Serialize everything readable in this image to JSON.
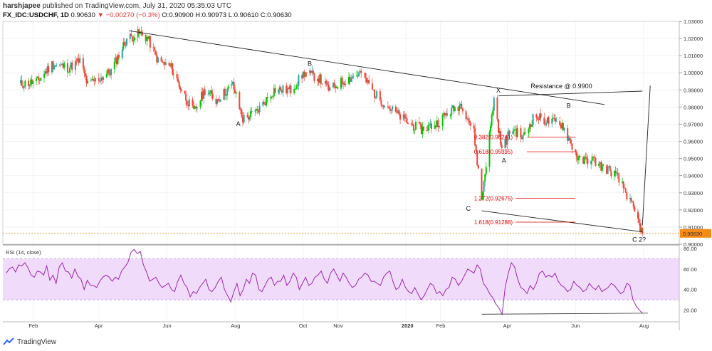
{
  "header": {
    "user": "harshjapee",
    "published": "published on TradingView.com, July 31, 2020 05:35:03 UTC"
  },
  "symbol": {
    "name": "FX_IDC:USDCHF, 1D",
    "last": "0.90630",
    "change": "−0.00270 (−0.3%)",
    "open_label": "O:",
    "open": "0.90900",
    "high_label": "H:",
    "high": "0.90973",
    "low_label": "L:",
    "low": "0.90610",
    "close_label": "C:",
    "close": "0.90630"
  },
  "rsi_label": "RSI (14, close)",
  "footer": {
    "brand": "TradingView"
  },
  "colors": {
    "up": "#26a69a",
    "up_bright": "#00c800",
    "down": "#f44336",
    "fib": "#e00000",
    "rsi_line": "#9c27b0",
    "rsi_band": "#f0dcfa",
    "price_tag": "#f58a14"
  },
  "chart_data": [
    {
      "type": "candlestick",
      "title": "",
      "x_ticks": [
        "Feb",
        "Apr",
        "Jun",
        "Aug",
        "Oct",
        "Nov",
        "2020",
        "Feb",
        "Apr",
        "Jun",
        "Aug"
      ],
      "y_ticks": [
        "1.03000",
        "1.02000",
        "1.01000",
        "1.00000",
        "0.99000",
        "0.98000",
        "0.97000",
        "0.96000",
        "0.95000",
        "0.94000",
        "0.93000",
        "0.92000",
        "0.91000",
        "0.90000"
      ],
      "ylim": [
        0.9,
        1.03
      ],
      "current_price": "0.90630",
      "close_path": [
        {
          "x": "2019-01-18",
          "y": 0.993
        },
        {
          "x": "2019-02-05",
          "y": 0.995
        },
        {
          "x": "2019-02-18",
          "y": 1.005
        },
        {
          "x": "2019-03-05",
          "y": 1.003
        },
        {
          "x": "2019-03-15",
          "y": 1.007
        },
        {
          "x": "2019-03-22",
          "y": 0.993
        },
        {
          "x": "2019-04-05",
          "y": 0.998
        },
        {
          "x": "2019-04-12",
          "y": 1.001
        },
        {
          "x": "2019-04-26",
          "y": 1.02
        },
        {
          "x": "2019-05-08",
          "y": 1.023
        },
        {
          "x": "2019-05-15",
          "y": 1.02
        },
        {
          "x": "2019-05-24",
          "y": 1.007
        },
        {
          "x": "2019-06-05",
          "y": 1.003
        },
        {
          "x": "2019-06-14",
          "y": 0.99
        },
        {
          "x": "2019-06-25",
          "y": 0.977
        },
        {
          "x": "2019-07-05",
          "y": 0.99
        },
        {
          "x": "2019-07-15",
          "y": 0.984
        },
        {
          "x": "2019-07-30",
          "y": 0.993
        },
        {
          "x": "2019-08-08",
          "y": 0.973
        },
        {
          "x": "2019-08-20",
          "y": 0.977
        },
        {
          "x": "2019-09-05",
          "y": 0.99
        },
        {
          "x": "2019-09-20",
          "y": 0.99
        },
        {
          "x": "2019-10-02",
          "y": 1.0
        },
        {
          "x": "2019-10-15",
          "y": 0.997
        },
        {
          "x": "2019-10-25",
          "y": 0.99
        },
        {
          "x": "2019-11-05",
          "y": 0.995
        },
        {
          "x": "2019-11-22",
          "y": 1.0
        },
        {
          "x": "2019-12-05",
          "y": 0.987
        },
        {
          "x": "2019-12-20",
          "y": 0.978
        },
        {
          "x": "2020-01-05",
          "y": 0.97
        },
        {
          "x": "2020-01-15",
          "y": 0.967
        },
        {
          "x": "2020-01-28",
          "y": 0.97
        },
        {
          "x": "2020-02-05",
          "y": 0.975
        },
        {
          "x": "2020-02-20",
          "y": 0.982
        },
        {
          "x": "2020-03-02",
          "y": 0.965
        },
        {
          "x": "2020-03-09",
          "y": 0.926
        },
        {
          "x": "2020-03-20",
          "y": 0.985
        },
        {
          "x": "2020-03-27",
          "y": 0.955
        },
        {
          "x": "2020-04-05",
          "y": 0.968
        },
        {
          "x": "2020-04-15",
          "y": 0.962
        },
        {
          "x": "2020-04-25",
          "y": 0.975
        },
        {
          "x": "2020-05-05",
          "y": 0.972
        },
        {
          "x": "2020-05-20",
          "y": 0.97
        },
        {
          "x": "2020-05-27",
          "y": 0.96
        },
        {
          "x": "2020-06-05",
          "y": 0.948
        },
        {
          "x": "2020-06-15",
          "y": 0.95
        },
        {
          "x": "2020-06-25",
          "y": 0.945
        },
        {
          "x": "2020-07-05",
          "y": 0.942
        },
        {
          "x": "2020-07-15",
          "y": 0.932
        },
        {
          "x": "2020-07-25",
          "y": 0.917
        },
        {
          "x": "2020-07-31",
          "y": 0.9063
        }
      ],
      "annotations": [
        {
          "text": "A"
        },
        {
          "text": "B"
        },
        {
          "text": "X"
        },
        {
          "text": "A"
        },
        {
          "text": "B"
        },
        {
          "text": "C"
        },
        {
          "text": "C 2?"
        },
        {
          "text": "Resistance @ 0.9900"
        }
      ],
      "fib_levels": [
        {
          "label": "0.382(0.96241)",
          "value": 0.96241
        },
        {
          "label": "0.618(0.95395)",
          "value": 0.95395
        },
        {
          "label": "1.272(0.92675)",
          "value": 0.92675
        },
        {
          "label": "1.618(0.91288)",
          "value": 0.91288
        }
      ]
    },
    {
      "type": "line",
      "title": "RSI (14, close)",
      "y_ticks": [
        "80.00",
        "60.00",
        "40.00",
        "20.00"
      ],
      "ylim": [
        10,
        82
      ],
      "band": [
        30,
        70
      ],
      "series": [
        {
          "values": [
            56,
            60,
            62,
            57,
            64,
            63,
            66,
            61,
            54,
            52,
            58,
            57,
            54,
            63,
            49,
            54,
            46,
            62,
            66,
            58,
            57,
            51,
            60,
            53,
            50,
            40,
            49,
            44,
            44,
            42,
            48,
            52,
            54,
            52,
            48,
            52,
            50,
            58,
            62,
            66,
            76,
            79,
            75,
            77,
            64,
            57,
            48,
            50,
            52,
            46,
            42,
            44,
            46,
            40,
            38,
            48,
            54,
            46,
            42,
            33,
            38,
            36,
            42,
            46,
            50,
            40,
            38,
            42,
            48,
            52,
            40,
            34,
            28,
            38,
            46,
            34,
            40,
            50,
            46,
            56,
            54,
            40,
            38,
            44,
            50,
            52,
            44,
            48,
            48,
            54,
            44,
            48,
            56,
            52,
            40,
            46,
            52,
            44,
            46,
            52,
            54,
            58,
            50,
            46,
            56,
            60,
            54,
            48,
            56,
            52,
            46,
            42,
            44,
            50,
            52,
            56,
            54,
            48,
            48,
            46,
            44,
            52,
            56,
            58,
            48,
            40,
            42,
            50,
            42,
            38,
            36,
            42,
            36,
            30,
            34,
            40,
            46,
            44,
            36,
            38,
            34,
            40,
            42,
            52,
            50,
            44,
            48,
            54,
            60,
            58,
            56,
            64,
            60,
            46,
            42,
            36,
            32,
            26,
            22,
            16,
            42,
            56,
            66,
            62,
            50,
            42,
            40,
            36,
            44,
            40,
            46,
            56,
            58,
            52,
            54,
            52,
            56,
            48,
            44,
            42,
            38,
            40,
            48,
            44,
            42,
            38,
            40,
            46,
            42,
            40,
            44,
            38,
            40,
            42,
            46,
            44,
            40,
            36,
            38,
            46,
            44,
            30,
            24,
            20,
            17
          ]
        }
      ]
    }
  ]
}
